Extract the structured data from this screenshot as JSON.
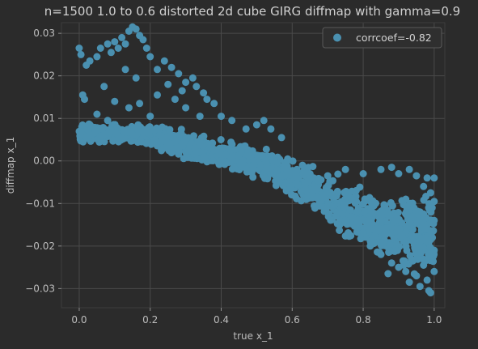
{
  "chart_data": {
    "type": "scatter",
    "title": "n=1500 1.0 to 0.6 distorted 2d cube GIRG diffmap with gamma=0.9",
    "xlabel": "true x_1",
    "ylabel": "diffmap x_1",
    "xlim": [
      -0.05,
      1.03
    ],
    "ylim": [
      -0.0345,
      0.0325
    ],
    "xticks": [
      0.0,
      0.2,
      0.4,
      0.6,
      0.8,
      1.0
    ],
    "xtick_labels": [
      "0.0",
      "0.2",
      "0.4",
      "0.6",
      "0.8",
      "1.0"
    ],
    "yticks": [
      0.03,
      0.02,
      0.01,
      0.0,
      -0.01,
      -0.02,
      -0.03
    ],
    "ytick_labels": [
      "0.03",
      "0.02",
      "0.01",
      "0.00",
      "−0.01",
      "−0.02",
      "−0.03"
    ],
    "grid": true,
    "legend": {
      "placement": "top-right",
      "entries": [
        "corrcoef=-0.82"
      ]
    },
    "series": [
      {
        "name": "corrcoef=-0.82",
        "color": "#4a90b0",
        "points_note_n": 1500,
        "points": [
          [
            0.0,
            0.0265
          ],
          [
            0.005,
            0.025
          ],
          [
            0.01,
            0.0155
          ],
          [
            0.015,
            0.0145
          ],
          [
            0.02,
            0.0225
          ],
          [
            0.03,
            0.0235
          ],
          [
            0.05,
            0.0245
          ],
          [
            0.06,
            0.0265
          ],
          [
            0.08,
            0.0275
          ],
          [
            0.09,
            0.0255
          ],
          [
            0.1,
            0.028
          ],
          [
            0.11,
            0.0265
          ],
          [
            0.12,
            0.029
          ],
          [
            0.13,
            0.0275
          ],
          [
            0.14,
            0.0305
          ],
          [
            0.15,
            0.0315
          ],
          [
            0.16,
            0.031
          ],
          [
            0.17,
            0.0295
          ],
          [
            0.18,
            0.0285
          ],
          [
            0.19,
            0.0265
          ],
          [
            0.2,
            0.0245
          ],
          [
            0.13,
            0.0215
          ],
          [
            0.07,
            0.0175
          ],
          [
            0.1,
            0.014
          ],
          [
            0.16,
            0.0195
          ],
          [
            0.05,
            0.011
          ],
          [
            0.14,
            0.0125
          ],
          [
            0.22,
            0.0215
          ],
          [
            0.24,
            0.0235
          ],
          [
            0.26,
            0.022
          ],
          [
            0.28,
            0.0205
          ],
          [
            0.25,
            0.018
          ],
          [
            0.3,
            0.0185
          ],
          [
            0.22,
            0.0155
          ],
          [
            0.27,
            0.0145
          ],
          [
            0.29,
            0.0165
          ],
          [
            0.32,
            0.0195
          ],
          [
            0.33,
            0.0175
          ],
          [
            0.35,
            0.016
          ],
          [
            0.36,
            0.0145
          ],
          [
            0.38,
            0.0135
          ],
          [
            0.3,
            0.0125
          ],
          [
            0.34,
            0.0105
          ],
          [
            0.4,
            0.0105
          ],
          [
            0.43,
            0.0095
          ],
          [
            0.47,
            0.0075
          ],
          [
            0.5,
            0.0085
          ],
          [
            0.52,
            0.0095
          ],
          [
            0.54,
            0.0075
          ],
          [
            0.57,
            0.0055
          ],
          [
            0.2,
            0.0105
          ],
          [
            0.17,
            0.0135
          ],
          [
            0.08,
            0.0095
          ],
          [
            0.03,
            0.0085
          ]
        ],
        "trend": [
          [
            0.0,
            0.0065,
            0.0012
          ],
          [
            0.05,
            0.0065,
            0.0013
          ],
          [
            0.1,
            0.0065,
            0.0014
          ],
          [
            0.15,
            0.006,
            0.0014
          ],
          [
            0.2,
            0.0058,
            0.0015
          ],
          [
            0.25,
            0.005,
            0.0016
          ],
          [
            0.3,
            0.0035,
            0.0018
          ],
          [
            0.35,
            0.0025,
            0.0018
          ],
          [
            0.4,
            0.0015,
            0.002
          ],
          [
            0.45,
            0.0005,
            0.002
          ],
          [
            0.5,
            -0.0005,
            0.0022
          ],
          [
            0.55,
            -0.002,
            0.0025
          ],
          [
            0.6,
            -0.004,
            0.0028
          ],
          [
            0.65,
            -0.006,
            0.003
          ],
          [
            0.7,
            -0.009,
            0.0035
          ],
          [
            0.75,
            -0.011,
            0.0038
          ],
          [
            0.8,
            -0.013,
            0.004
          ],
          [
            0.85,
            -0.015,
            0.0045
          ],
          [
            0.9,
            -0.016,
            0.005
          ],
          [
            0.95,
            -0.017,
            0.0055
          ],
          [
            1.0,
            -0.018,
            0.006
          ]
        ],
        "lower_tail": [
          [
            0.75,
            -0.014
          ],
          [
            0.8,
            -0.017
          ],
          [
            0.82,
            -0.02
          ],
          [
            0.85,
            -0.022
          ],
          [
            0.88,
            -0.024
          ],
          [
            0.9,
            -0.025
          ],
          [
            0.92,
            -0.026
          ],
          [
            0.95,
            -0.027
          ],
          [
            0.98,
            -0.028
          ],
          [
            0.985,
            -0.0305
          ],
          [
            0.99,
            -0.031
          ],
          [
            0.96,
            -0.0295
          ],
          [
            0.93,
            -0.0285
          ],
          [
            0.87,
            -0.0265
          ],
          [
            1.0,
            -0.026
          ],
          [
            0.97,
            -0.0245
          ],
          [
            0.94,
            -0.0235
          ],
          [
            0.99,
            -0.022
          ],
          [
            1.0,
            -0.021
          ],
          [
            0.96,
            -0.019
          ]
        ],
        "upper_tail": [
          [
            0.65,
            -0.003
          ],
          [
            0.7,
            -0.0035
          ],
          [
            0.75,
            -0.002
          ],
          [
            0.8,
            -0.003
          ],
          [
            0.85,
            -0.002
          ],
          [
            0.88,
            -0.0015
          ],
          [
            0.9,
            -0.003
          ],
          [
            0.93,
            -0.002
          ],
          [
            0.95,
            -0.0035
          ],
          [
            0.98,
            -0.004
          ],
          [
            1.0,
            -0.004
          ],
          [
            0.97,
            -0.006
          ],
          [
            0.99,
            -0.0075
          ],
          [
            1.0,
            -0.0095
          ],
          [
            0.96,
            -0.012
          ],
          [
            0.98,
            -0.016
          ],
          [
            0.99,
            -0.0185
          ],
          [
            1.0,
            -0.014
          ],
          [
            0.92,
            -0.009
          ],
          [
            0.94,
            -0.013
          ]
        ]
      }
    ]
  }
}
